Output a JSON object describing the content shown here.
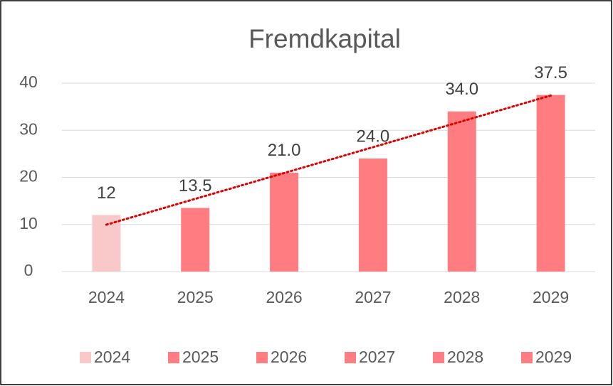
{
  "chart_data": {
    "type": "bar",
    "title": "Fremdkapital",
    "categories": [
      "2024",
      "2025",
      "2026",
      "2027",
      "2028",
      "2029"
    ],
    "values": [
      12,
      13.5,
      21,
      24,
      34,
      37.5
    ],
    "value_labels": [
      "12",
      "13.5",
      "21.0",
      "24.0",
      "34.0",
      "37.5"
    ],
    "colors": [
      "#f9c8c8",
      "#ff7c80",
      "#ff7c80",
      "#ff7c80",
      "#ff7c80",
      "#ff7c80"
    ],
    "ylim": [
      0,
      40
    ],
    "yticks": [
      0,
      10,
      20,
      30,
      40
    ],
    "grid": true,
    "trendline": "linear",
    "trendline_color": "#e00000",
    "legend": "bottom"
  }
}
